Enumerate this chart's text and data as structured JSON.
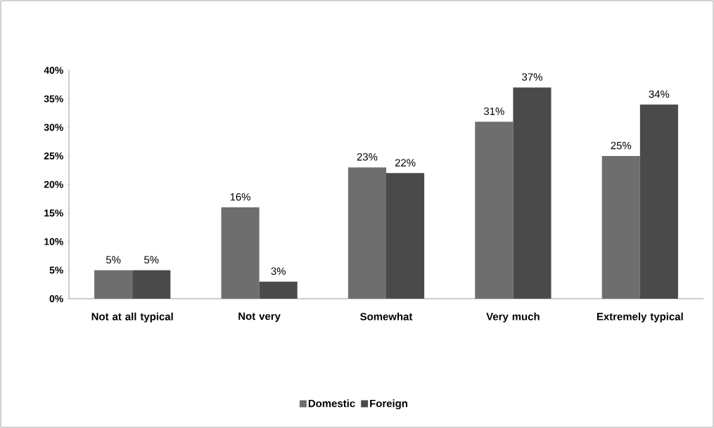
{
  "chart_data": {
    "type": "bar",
    "categories": [
      "Not at all typical",
      "Not very",
      "Somewhat",
      "Very much",
      "Extremely typical"
    ],
    "series": [
      {
        "name": "Domestic",
        "color": "#6e6e6e",
        "values": [
          5,
          16,
          23,
          31,
          25
        ],
        "value_labels": [
          "5%",
          "16%",
          "23%",
          "31%",
          "25%"
        ]
      },
      {
        "name": "Foreign",
        "color": "#4a4a4a",
        "values": [
          5,
          3,
          22,
          37,
          34
        ],
        "value_labels": [
          "5%",
          "3%",
          "22%",
          "37%",
          "34%"
        ]
      }
    ],
    "ylim": [
      0,
      40
    ],
    "yticks": [
      {
        "value": 0,
        "label": "0%"
      },
      {
        "value": 5,
        "label": "5%"
      },
      {
        "value": 10,
        "label": "10%"
      },
      {
        "value": 15,
        "label": "15%"
      },
      {
        "value": 20,
        "label": "20%"
      },
      {
        "value": 25,
        "label": "25%"
      },
      {
        "value": 30,
        "label": "30%"
      },
      {
        "value": 35,
        "label": "35%"
      },
      {
        "value": 40,
        "label": "40%"
      }
    ],
    "grid": false,
    "legend": "bottom"
  }
}
